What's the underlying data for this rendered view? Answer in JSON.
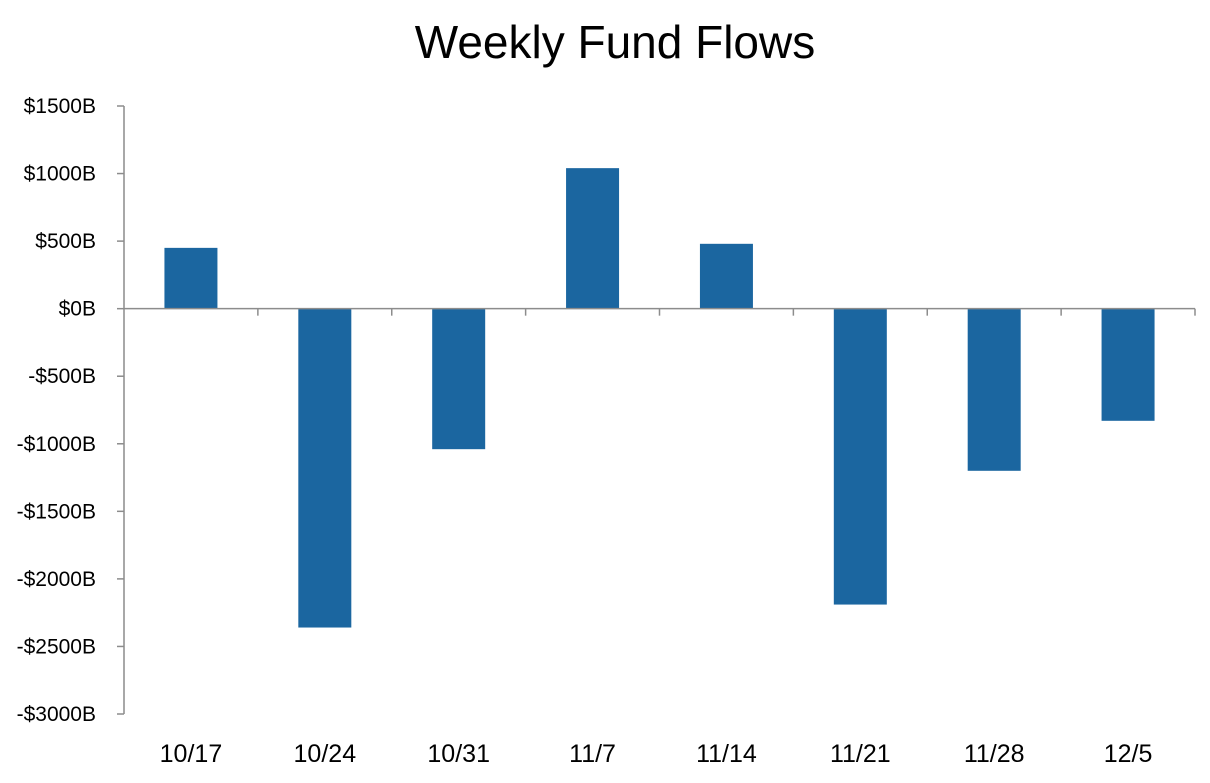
{
  "chart_data": {
    "type": "bar",
    "title": "Weekly Fund Flows",
    "xlabel": "",
    "ylabel": "",
    "categories": [
      "10/17",
      "10/24",
      "10/31",
      "11/7",
      "11/14",
      "11/21",
      "11/28",
      "12/5"
    ],
    "values": [
      450,
      -2360,
      -1040,
      1040,
      480,
      -2190,
      -1200,
      -830
    ],
    "ylim": [
      -3000,
      1500
    ],
    "yticks": [
      1500,
      1000,
      500,
      0,
      -500,
      -1000,
      -1500,
      -2000,
      -2500,
      -3000
    ],
    "ytick_labels": [
      "$1500B",
      "$1000B",
      "$500B",
      "$0B",
      "-$500B",
      "-$1000B",
      "-$1500B",
      "-$2000B",
      "-$2500B",
      "-$3000B"
    ],
    "grid": false,
    "legend": "none",
    "bar_color": "#1b66a0"
  }
}
